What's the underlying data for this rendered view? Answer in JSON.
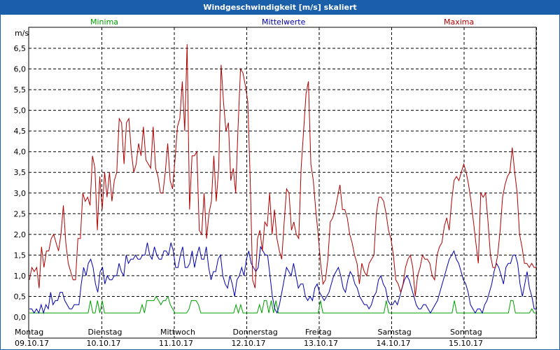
{
  "chart_data": {
    "type": "line",
    "title": "Windgeschwindigkeit [m/s] skaliert",
    "ylabel": "m/s",
    "ylim": [
      0,
      7
    ],
    "yticks": [
      "0,0",
      "0,5",
      "1,0",
      "1,5",
      "2,0",
      "2,5",
      "3,0",
      "3,5",
      "4,0",
      "4,5",
      "5,0",
      "5,5",
      "6,0",
      "6,5"
    ],
    "grid": true,
    "legend_placement": "top",
    "x_range_days": [
      0,
      7
    ],
    "day_labels": [
      {
        "day": "Montag",
        "date": "09.10.17"
      },
      {
        "day": "Dienstag",
        "date": "10.10.17"
      },
      {
        "day": "Mittwoch",
        "date": "11.10.17"
      },
      {
        "day": "Donnerstag",
        "date": "12.10.17"
      },
      {
        "day": "Freitag",
        "date": "13.10.17"
      },
      {
        "day": "Samstag",
        "date": "14.10.17"
      },
      {
        "day": "Sonntag",
        "date": "15.10.17"
      }
    ],
    "series": [
      {
        "name": "Minima",
        "color": "#00a000",
        "values": [
          0.1,
          0.1,
          0.1,
          0.1,
          0.1,
          0.1,
          0.1,
          0.1,
          0.1,
          0.1,
          0.1,
          0.1,
          0.1,
          0.1,
          0.1,
          0.1,
          0.1,
          0.1,
          0.1,
          0.1,
          0.1,
          0.1,
          0.1,
          0.1,
          0.1,
          0.1,
          0.4,
          0.1,
          0.1,
          0.4,
          0.1,
          0.4,
          0.1,
          0.1,
          0.1,
          0.1,
          0.1,
          0.1,
          0.1,
          0.1,
          0.1,
          0.1,
          0.1,
          0.1,
          0.1,
          0.1,
          0.1,
          0.1,
          0.3,
          0.1,
          0.4,
          0.4,
          0.4,
          0.4,
          0.5,
          0.4,
          0.3,
          0.4,
          0.4,
          0.5,
          0.3,
          0.2,
          0.1,
          0.1,
          0.1,
          0.1,
          0.1,
          0.1,
          0.2,
          0.4,
          0.4,
          0.4,
          0.3,
          0.1,
          0.1,
          0.1,
          0.1,
          0.1,
          0.1,
          0.1,
          0.1,
          0.1,
          0.1,
          0.1,
          0.1,
          0.1,
          0.1,
          0.1,
          0.3,
          0.1,
          0.3,
          0.1,
          0.1,
          0.1,
          0.1,
          0.1,
          0.1,
          0.1,
          0.3,
          0.1,
          0.4,
          0.4,
          0.1,
          0.4,
          0.1,
          0.4,
          0.1,
          0.1,
          0.1,
          0.1,
          0.1,
          0.1,
          0.1,
          0.1,
          0.1,
          0.1,
          0.1,
          0.1,
          0.1,
          0.1,
          0.1,
          0.1,
          0.1,
          0.1,
          0.4,
          0.1,
          0.1,
          0.1,
          0.1,
          0.1,
          0.1,
          0.1,
          0.1,
          0.1,
          0.1,
          0.1,
          0.1,
          0.1,
          0.1,
          0.1,
          0.1,
          0.1,
          0.1,
          0.1,
          0.1,
          0.1,
          0.1,
          0.1,
          0.1,
          0.1,
          0.1,
          0.1,
          0.4,
          0.1,
          0.1,
          0.1,
          0.1,
          0.1,
          0.1,
          0.1,
          0.1,
          0.1,
          0.1,
          0.1,
          0.1,
          0.1,
          0.1,
          0.1,
          0.1,
          0.1,
          0.1,
          0.1,
          0.1,
          0.1,
          0.1,
          0.1,
          0.1,
          0.1,
          0.1,
          0.1,
          0.1,
          0.4,
          0.1,
          0.1,
          0.1,
          0.1,
          0.1,
          0.1,
          0.1,
          0.1,
          0.1,
          0.1,
          0.1,
          0.1,
          0.1,
          0.1,
          0.1,
          0.1,
          0.1,
          0.1,
          0.1,
          0.1,
          0.1,
          0.1,
          0.1,
          0.4,
          0.4,
          0.1,
          0.1,
          0.1,
          0.1,
          0.1,
          0.1,
          0.1,
          0.2,
          0.1,
          0.1
        ]
      },
      {
        "name": "Mittelwerte",
        "color": "#0000b0",
        "values": [
          0.2,
          0.2,
          0.1,
          0.2,
          0.1,
          0.3,
          0.1,
          0.3,
          0.2,
          0.6,
          0.3,
          0.4,
          0.4,
          0.6,
          0.6,
          0.4,
          0.3,
          0.2,
          0.2,
          0.3,
          0.3,
          0.3,
          0.8,
          1.2,
          1.0,
          1.3,
          1.4,
          1.2,
          0.8,
          0.6,
          1.1,
          1.2,
          0.8,
          1.0,
          0.9,
          0.9,
          1.0,
          1.0,
          1.3,
          1.1,
          1.0,
          1.5,
          1.3,
          1.4,
          1.4,
          1.5,
          1.4,
          1.4,
          1.5,
          1.5,
          1.8,
          1.5,
          1.4,
          1.7,
          1.5,
          1.4,
          1.4,
          1.6,
          1.6,
          1.5,
          1.8,
          1.6,
          1.2,
          1.2,
          1.5,
          1.7,
          1.2,
          1.2,
          1.3,
          1.6,
          1.2,
          1.5,
          1.7,
          1.4,
          1.4,
          1.7,
          1.2,
          0.9,
          1.1,
          1.1,
          1.4,
          1.5,
          1.0,
          0.8,
          0.7,
          1.0,
          0.8,
          0.5,
          0.9,
          1.0,
          1.2,
          1.0,
          1.4,
          1.6,
          1.3,
          1.2,
          1.1,
          1.2,
          1.7,
          1.6,
          1.5,
          1.5,
          1.0,
          0.5,
          0.2,
          0.1,
          0.3,
          0.6,
          0.9,
          1.2,
          1.1,
          1.0,
          1.3,
          1.0,
          0.7,
          0.8,
          0.8,
          0.5,
          0.4,
          0.5,
          0.4,
          0.7,
          0.8,
          0.6,
          0.5,
          0.4,
          0.5,
          0.6,
          0.8,
          1.0,
          1.1,
          1.2,
          1.0,
          0.7,
          0.6,
          0.9,
          1.1,
          1.0,
          0.8,
          0.7,
          0.5,
          0.4,
          0.3,
          0.3,
          0.2,
          0.3,
          0.5,
          0.6,
          0.9,
          1.0,
          0.8,
          0.7,
          0.4,
          0.3,
          0.3,
          0.4,
          0.3,
          0.5,
          0.7,
          0.9,
          1.0,
          0.9,
          0.7,
          0.5,
          0.3,
          0.2,
          0.2,
          0.3,
          0.3,
          0.2,
          0.1,
          0.2,
          0.3,
          0.4,
          0.6,
          0.8,
          1.0,
          1.2,
          1.4,
          1.5,
          1.6,
          1.4,
          1.3,
          1.1,
          0.9,
          0.8,
          0.6,
          0.3,
          0.2,
          0.1,
          0.2,
          0.2,
          0.1,
          0.3,
          0.4,
          0.6,
          0.8,
          1.1,
          1.3,
          1.2,
          1.0,
          0.8,
          1.2,
          1.3,
          1.3,
          1.5,
          1.5,
          1.3,
          0.8,
          0.5,
          0.8,
          1.1,
          0.7,
          0.5,
          0.2,
          0.2
        ]
      },
      {
        "name": "Maxima",
        "color": "#b00000",
        "values": [
          0.9,
          1.2,
          1.1,
          1.2,
          0.7,
          1.7,
          1.2,
          1.6,
          1.6,
          1.9,
          2.0,
          1.8,
          1.6,
          2.0,
          2.7,
          1.8,
          1.3,
          1.1,
          0.9,
          0.9,
          1.9,
          1.9,
          3.0,
          2.8,
          2.9,
          2.7,
          3.9,
          3.6,
          2.1,
          3.4,
          2.6,
          3.5,
          2.9,
          3.5,
          2.8,
          3.3,
          3.5,
          4.8,
          4.7,
          3.7,
          4.7,
          4.8,
          4.0,
          3.5,
          3.7,
          4.2,
          3.9,
          4.6,
          3.8,
          3.7,
          3.6,
          4.6,
          3.6,
          3.4,
          3.0,
          3.0,
          3.5,
          4.2,
          3.3,
          3.1,
          3.8,
          4.6,
          4.8,
          5.7,
          4.5,
          6.6,
          2.6,
          3.9,
          3.9,
          4.0,
          2.1,
          2.0,
          3.0,
          1.9,
          2.5,
          2.8,
          3.9,
          2.8,
          3.6,
          6.1,
          5.2,
          4.5,
          4.7,
          3.3,
          3.6,
          3.0,
          4.6,
          6.0,
          5.9,
          5.6,
          5.2,
          3.3,
          0.9,
          0.7,
          1.9,
          2.1,
          1.6,
          2.3,
          2.2,
          3.0,
          2.0,
          2.6,
          1.9,
          1.6,
          1.4,
          2.3,
          3.1,
          3.0,
          2.1,
          2.3,
          2.0,
          1.9,
          3.6,
          4.5,
          5.4,
          5.7,
          3.7,
          3.3,
          2.6,
          2.0,
          1.3,
          0.8,
          0.9,
          1.4,
          2.3,
          2.4,
          2.6,
          2.9,
          3.2,
          2.6,
          2.6,
          2.4,
          2.0,
          1.8,
          1.5,
          1.3,
          0.8,
          1.3,
          1.1,
          1.0,
          1.3,
          1.4,
          1.5,
          2.5,
          2.9,
          2.9,
          2.8,
          2.5,
          2.1,
          1.9,
          1.5,
          0.9,
          0.8,
          0.6,
          0.8,
          1.2,
          1.4,
          1.5,
          1.2,
          0.5,
          1.0,
          1.2,
          1.5,
          1.4,
          1.4,
          1.3,
          1.0,
          0.9,
          1.5,
          1.7,
          1.8,
          2.2,
          2.4,
          2.1,
          2.8,
          3.3,
          3.4,
          3.3,
          3.5,
          3.7,
          3.5,
          3.2,
          2.8,
          2.3,
          1.8,
          1.3,
          3.0,
          2.9,
          3.0,
          2.3,
          1.5,
          1.2,
          1.2,
          1.5,
          2.1,
          2.9,
          3.2,
          3.4,
          3.5,
          4.1,
          3.5,
          3.0,
          2.0,
          1.7,
          1.3,
          1.3,
          1.2,
          1.3,
          1.2,
          1.2
        ]
      }
    ]
  }
}
